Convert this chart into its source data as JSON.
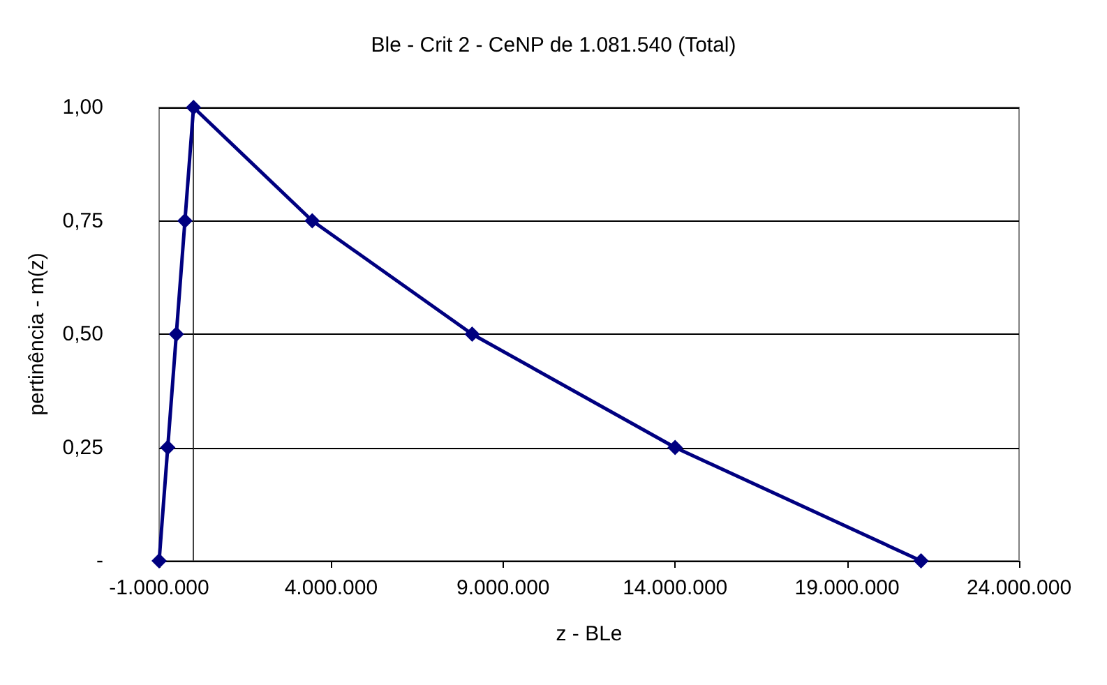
{
  "chart_data": {
    "type": "line",
    "title": "Ble - Crit 2 - CeNP de 1.081.540 (Total)",
    "xlabel": "z - BLe",
    "ylabel": "pertinência - m(z)",
    "x": [
      -1000000,
      -750000,
      -500000,
      -250000,
      0,
      3450000,
      8100000,
      14000000,
      21150000
    ],
    "series": [
      {
        "color": "#000080",
        "values": [
          0,
          0.25,
          0.5,
          0.75,
          1,
          0.75,
          0.5,
          0.25,
          0
        ]
      }
    ],
    "xlim": [
      -1000000,
      24000000
    ],
    "xticks": [
      {
        "value": -1000000,
        "label": "-1.000.000"
      },
      {
        "value": 4000000,
        "label": "4.000.000"
      },
      {
        "value": 9000000,
        "label": "9.000.000"
      },
      {
        "value": 14000000,
        "label": "14.000.000"
      },
      {
        "value": 19000000,
        "label": "19.000.000"
      },
      {
        "value": 24000000,
        "label": "24.000.000"
      }
    ],
    "ylim": [
      0,
      1
    ],
    "yticks": [
      {
        "value": 0,
        "label": "-"
      },
      {
        "value": 0.25,
        "label": "0,25"
      },
      {
        "value": 0.5,
        "label": "0,50"
      },
      {
        "value": 0.75,
        "label": "0,75"
      },
      {
        "value": 1,
        "label": "1,00"
      }
    ],
    "grid": "y",
    "marker": "diamond",
    "line_style": "solid"
  }
}
